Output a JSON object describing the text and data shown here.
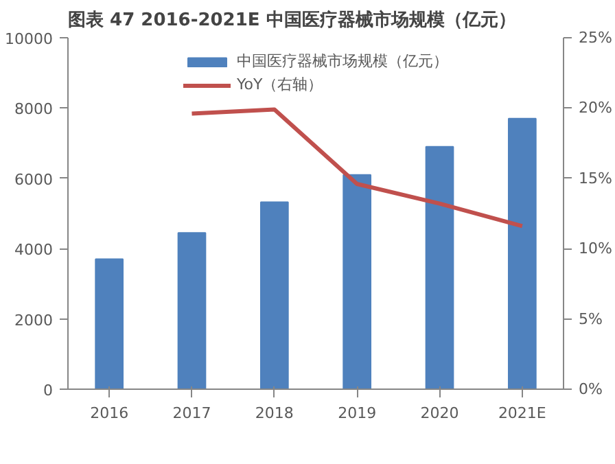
{
  "chart_data": {
    "type": "bar",
    "title": "图表 47 2016-2021E 中国医疗器械市场规模（亿元）",
    "categories": [
      "2016",
      "2017",
      "2018",
      "2019",
      "2020",
      "2021E"
    ],
    "series": [
      {
        "name": "中国医疗器械市场规模（亿元）",
        "color": "#4f81bd",
        "values": [
          3700,
          4450,
          5320,
          6100,
          6900,
          7700
        ]
      },
      {
        "name": "YoY（右轴）",
        "type": "line",
        "axis": "y2",
        "color": "#c0504d",
        "values": [
          null,
          19.6,
          19.9,
          14.6,
          13.2,
          11.6
        ]
      }
    ],
    "ylim": [
      0,
      10000
    ],
    "yticks": [
      0,
      2000,
      4000,
      6000,
      8000,
      10000
    ],
    "y2lim": [
      0,
      25
    ],
    "y2ticks": [
      {
        "value": 0,
        "label": "0%"
      },
      {
        "value": 5,
        "label": "5%"
      },
      {
        "value": 10,
        "label": "10%"
      },
      {
        "value": 15,
        "label": "15%"
      },
      {
        "value": 20,
        "label": "20%"
      },
      {
        "value": 25,
        "label": "25%"
      }
    ],
    "grid": false,
    "legend": "top"
  }
}
